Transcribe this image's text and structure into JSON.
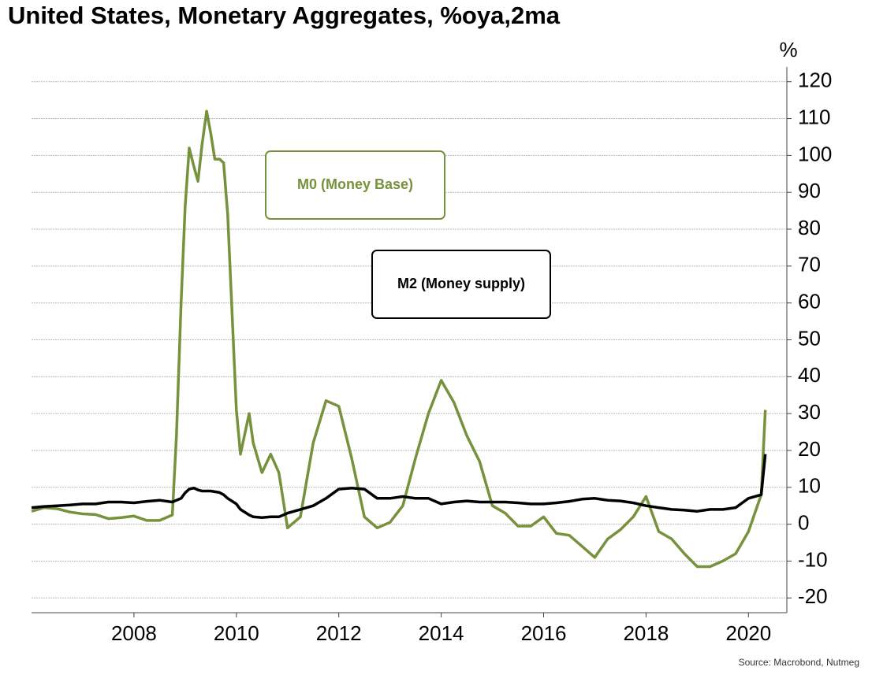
{
  "chart_data": {
    "type": "line",
    "title": "United States, Monetary Aggregates, %oya,2ma",
    "y_label": "%",
    "source": "Source: Macrobond, Nutmeg",
    "x": [
      2006,
      2006.25,
      2006.5,
      2006.75,
      2007,
      2007.25,
      2007.5,
      2007.75,
      2008,
      2008.25,
      2008.5,
      2008.75,
      2008.83,
      2008.92,
      2009,
      2009.08,
      2009.17,
      2009.25,
      2009.33,
      2009.42,
      2009.5,
      2009.58,
      2009.67,
      2009.75,
      2009.83,
      2010,
      2010.08,
      2010.25,
      2010.33,
      2010.5,
      2010.67,
      2010.83,
      2011,
      2011.25,
      2011.5,
      2011.75,
      2012,
      2012.25,
      2012.5,
      2012.75,
      2013,
      2013.25,
      2013.5,
      2013.75,
      2014,
      2014.25,
      2014.5,
      2014.75,
      2015,
      2015.25,
      2015.5,
      2015.75,
      2016,
      2016.25,
      2016.5,
      2016.75,
      2017,
      2017.25,
      2017.5,
      2017.75,
      2018,
      2018.25,
      2018.5,
      2018.75,
      2019,
      2019.25,
      2019.5,
      2019.75,
      2020,
      2020.25,
      2020.33
    ],
    "series": [
      {
        "name": "M0 (Money Base)",
        "color": "#76923c",
        "values": [
          3.5,
          4.5,
          4.2,
          3.3,
          2.8,
          2.6,
          1.5,
          1.8,
          2.2,
          1.0,
          1.0,
          2.5,
          24,
          60,
          86,
          102,
          97,
          93,
          103,
          112,
          106,
          99,
          99,
          98,
          84,
          31,
          19,
          30,
          22,
          14,
          19,
          14,
          -1,
          2,
          22,
          33.5,
          32,
          18,
          2,
          -1,
          0.5,
          5,
          18,
          30,
          39,
          33,
          24,
          17,
          5,
          3,
          -0.5,
          -0.5,
          2,
          -2.5,
          -3,
          -6,
          -9,
          -4,
          -1.5,
          2,
          7.5,
          -2,
          -4,
          -8,
          -11.5,
          -11.5,
          -10,
          -8,
          -2,
          8,
          31
        ]
      },
      {
        "name": "M2 (Money supply)",
        "color": "#000000",
        "values": [
          4.5,
          4.8,
          5,
          5.2,
          5.5,
          5.5,
          6,
          6,
          5.8,
          6.2,
          6.5,
          6,
          6.5,
          7,
          8.5,
          9.5,
          9.8,
          9.3,
          9,
          9,
          9,
          8.8,
          8.6,
          8,
          7,
          5.5,
          4,
          2.5,
          2,
          1.8,
          2,
          2,
          3,
          4,
          5,
          7,
          9.5,
          9.8,
          9.5,
          7,
          7,
          7.5,
          7,
          7,
          5.5,
          6,
          6.3,
          6,
          6,
          6,
          5.8,
          5.5,
          5.5,
          5.8,
          6.2,
          6.8,
          7,
          6.5,
          6.3,
          5.8,
          5,
          4.5,
          4,
          3.8,
          3.5,
          4,
          4,
          4.5,
          7,
          8,
          19
        ]
      }
    ],
    "xlim": [
      2006,
      2020.75
    ],
    "xticks": [
      2008,
      2010,
      2012,
      2014,
      2016,
      2018,
      2020
    ],
    "ylim": [
      -24,
      124
    ],
    "yticks": [
      -20,
      -10,
      0,
      10,
      20,
      30,
      40,
      50,
      60,
      70,
      80,
      90,
      100,
      110,
      120
    ],
    "grid": true
  }
}
